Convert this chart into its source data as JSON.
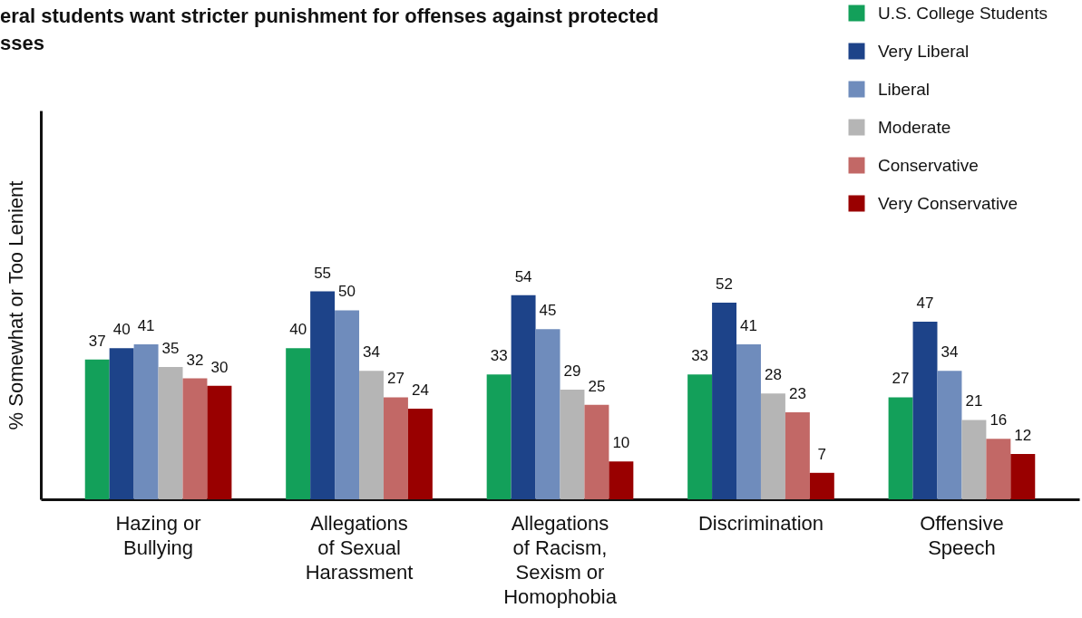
{
  "chart_data": {
    "type": "bar",
    "title": "eral students want stricter punishment for offenses against protected sses",
    "ylabel": "% Somewhat or Too Lenient",
    "categories": [
      "Hazing or Bullying",
      "Allegations of Sexual Harassment",
      "Allegations of Racism, Sexism or Homophobia",
      "Discrimination",
      "Offensive Speech"
    ],
    "series": [
      {
        "name": "U.S. College Students",
        "color": "#13a05a",
        "values": [
          37,
          40,
          33,
          33,
          27
        ]
      },
      {
        "name": "Very Liberal",
        "color": "#1d4389",
        "values": [
          40,
          55,
          54,
          52,
          47
        ]
      },
      {
        "name": "Liberal",
        "color": "#6f8cbc",
        "values": [
          41,
          50,
          45,
          41,
          34
        ]
      },
      {
        "name": "Moderate",
        "color": "#b5b5b5",
        "values": [
          35,
          34,
          29,
          28,
          21
        ]
      },
      {
        "name": "Conservative",
        "color": "#c26866",
        "values": [
          32,
          27,
          25,
          23,
          16
        ]
      },
      {
        "name": "Very Conservative",
        "color": "#990000",
        "values": [
          30,
          24,
          10,
          7,
          12
        ]
      }
    ],
    "data_labels": true,
    "tick_labels": "x",
    "legend": "top right"
  }
}
